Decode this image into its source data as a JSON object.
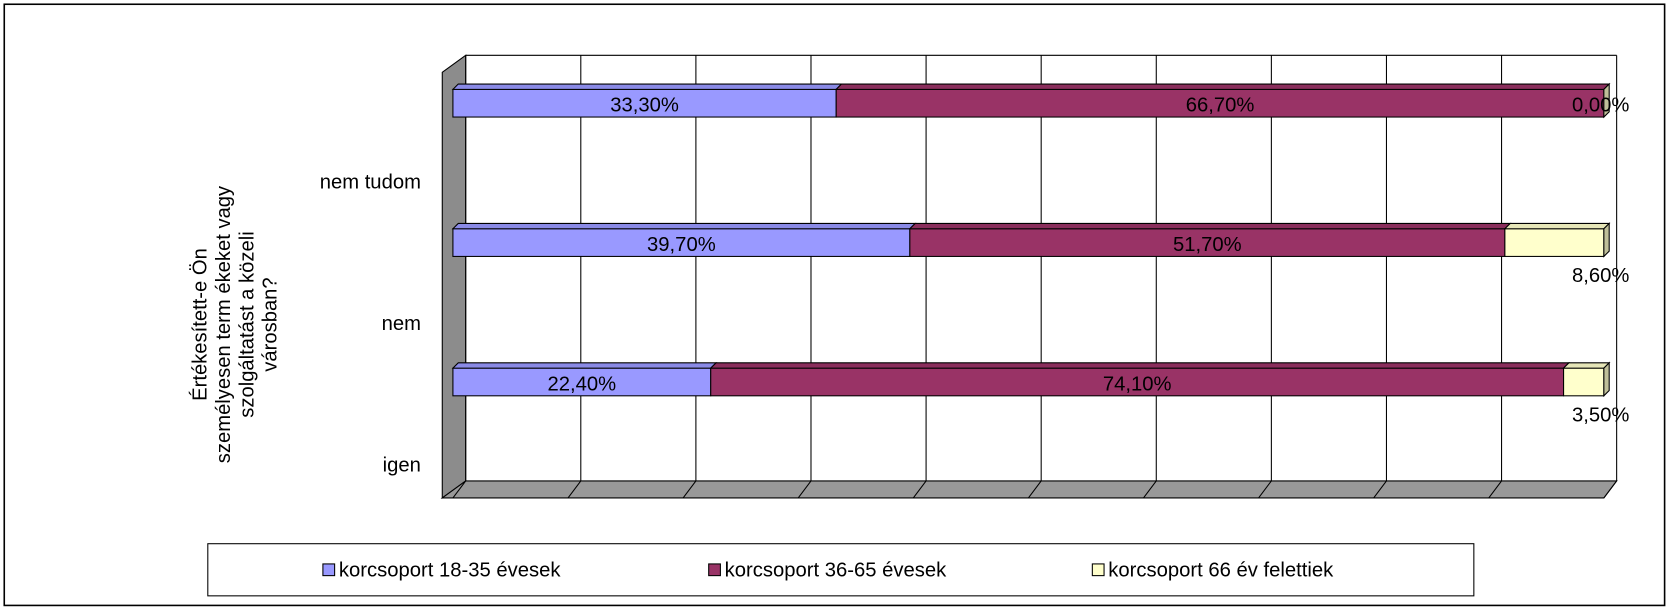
{
  "chart_data": {
    "type": "bar",
    "orientation": "horizontal",
    "stacked": true,
    "y_label": [
      "Értékesített-e Ön",
      "személyesen term ékeket vagy",
      "szolgáltatást a közeli",
      "városban?"
    ],
    "categories": [
      "igen",
      "nem",
      "nem tudom"
    ],
    "series": [
      {
        "name": "korcsoport 18-35 évesek",
        "color": "#9999ff",
        "values": [
          22.4,
          39.7,
          33.3
        ],
        "value_labels": [
          "22,40%",
          "39,70%",
          "33,30%"
        ]
      },
      {
        "name": "korcsoport 36-65 évesek",
        "color": "#993366",
        "values": [
          74.1,
          51.7,
          66.7
        ],
        "value_labels": [
          "74,10%",
          "51,70%",
          "66,70%"
        ]
      },
      {
        "name": "korcsoport 66 év felettiek",
        "color": "#ffffcc",
        "values": [
          3.5,
          8.6,
          0.0
        ],
        "value_labels": [
          "3,50%",
          "8,60%",
          "0,00%"
        ]
      }
    ],
    "xlim": [
      0,
      100
    ],
    "xticks": [
      0,
      10,
      20,
      30,
      40,
      50,
      60,
      70,
      80,
      90,
      100
    ],
    "grid": true,
    "legend": "bottom"
  }
}
